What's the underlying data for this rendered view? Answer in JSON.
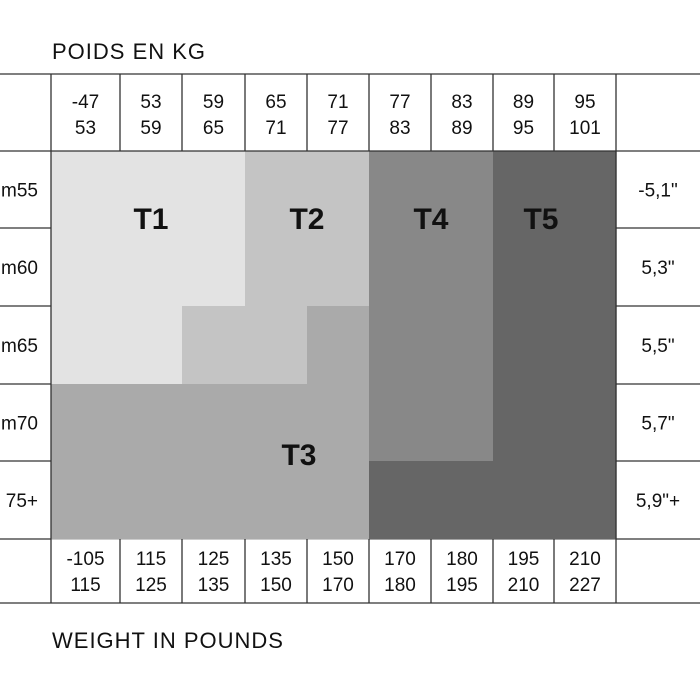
{
  "chart_data": {
    "type": "heatmap",
    "top_title": "POIDS EN KG",
    "bottom_title": "WEIGHT IN POUNDS",
    "kg_ranges": [
      [
        "-47",
        "53"
      ],
      [
        "53",
        "59"
      ],
      [
        "59",
        "65"
      ],
      [
        "65",
        "71"
      ],
      [
        "71",
        "77"
      ],
      [
        "77",
        "83"
      ],
      [
        "83",
        "89"
      ],
      [
        "89",
        "95"
      ],
      [
        "95",
        "101"
      ]
    ],
    "lb_ranges": [
      [
        "-105",
        "115"
      ],
      [
        "115",
        "125"
      ],
      [
        "125",
        "135"
      ],
      [
        "135",
        "150"
      ],
      [
        "150",
        "170"
      ],
      [
        "170",
        "180"
      ],
      [
        "180",
        "195"
      ],
      [
        "195",
        "210"
      ],
      [
        "210",
        "227"
      ]
    ],
    "height_cm": [
      "m55",
      "m60",
      "m65",
      "m70",
      "75+"
    ],
    "height_ft": [
      "-5,1\"",
      "5,3\"",
      "5,5\"",
      "5,7\"",
      "5,9\"+"
    ],
    "sizes": [
      {
        "name": "T1",
        "color": "#e3e3e3"
      },
      {
        "name": "T2",
        "color": "#c4c4c4"
      },
      {
        "name": "T3",
        "color": "#aaaaaa"
      },
      {
        "name": "T4",
        "color": "#888888"
      },
      {
        "name": "T5",
        "color": "#666666"
      }
    ],
    "cells": [
      [
        "T1",
        "T1",
        "T1",
        "T2",
        "T2",
        "T4",
        "T4",
        "T5",
        "T5"
      ],
      [
        "T1",
        "T1",
        "T1",
        "T2",
        "T2",
        "T4",
        "T4",
        "T5",
        "T5"
      ],
      [
        "T1",
        "T1",
        "T2",
        "T2",
        "T3",
        "T4",
        "T4",
        "T5",
        "T5"
      ],
      [
        "T3",
        "T3",
        "T3",
        "T3",
        "T3",
        "T4",
        "T4",
        "T5",
        "T5"
      ],
      [
        "T3",
        "T3",
        "T3",
        "T3",
        "T3",
        "T5",
        "T5",
        "T5",
        "T5"
      ]
    ],
    "grid": true
  }
}
